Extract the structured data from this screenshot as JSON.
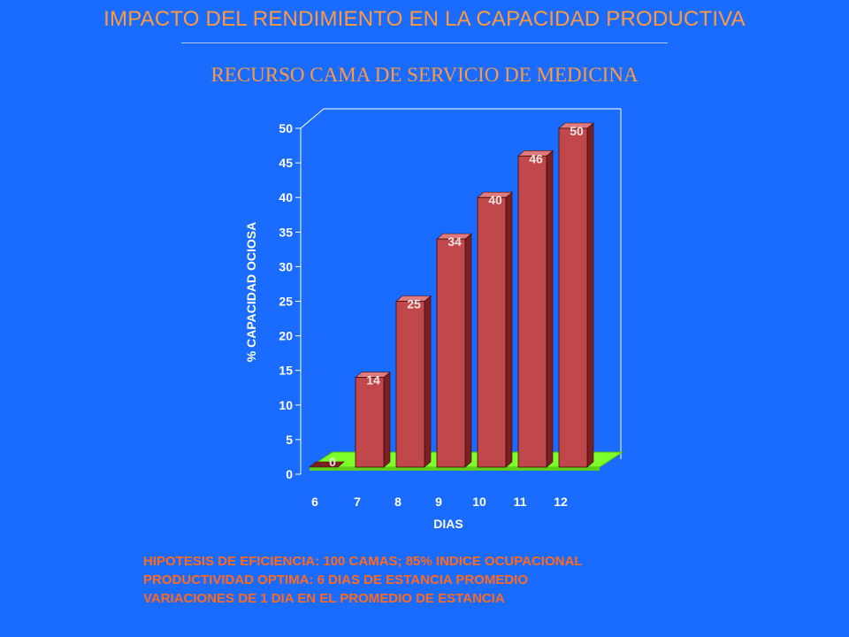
{
  "header": {
    "title": "IMPACTO DEL RENDIMIENTO EN LA CAPACIDAD PRODUCTIVA",
    "subtitle": "RECURSO CAMA DE SERVICIO DE MEDICINA"
  },
  "chart_data": {
    "type": "bar",
    "categories": [
      "6",
      "7",
      "8",
      "9",
      "10",
      "11",
      "12"
    ],
    "values": [
      0,
      14,
      25,
      34,
      40,
      46,
      50
    ],
    "data_labels": [
      "0",
      "14",
      "25",
      "34",
      "40",
      "46",
      "50"
    ],
    "xlabel": "DIAS",
    "ylabel": "% CAPACIDAD OCIOSA",
    "ylim": [
      0,
      50
    ],
    "yticks": [
      0,
      5,
      10,
      15,
      20,
      25,
      30,
      35,
      40,
      45,
      50
    ],
    "grid": false,
    "legend": "none",
    "style": "3d-bars"
  },
  "notes": [
    "HIPOTESIS DE EFICIENCIA: 100 CAMAS; 85% INDICE OCUPACIONAL",
    "PRODUCTIVIDAD OPTIMA: 6 DIAS DE ESTANCIA PROMEDIO",
    "VARIACIONES DE 1 DIA EN EL PROMEDIO DE ESTANCIA"
  ],
  "colors": {
    "background": "#1a6bff",
    "title": "#ff9a3c",
    "bar_front": "#c0474a",
    "bar_side": "#7a1f22",
    "bar_top": "#e07b7d",
    "floor": "#7dff2a",
    "axis_text": "#ffffff",
    "notes_text": "#ff6a1a"
  }
}
